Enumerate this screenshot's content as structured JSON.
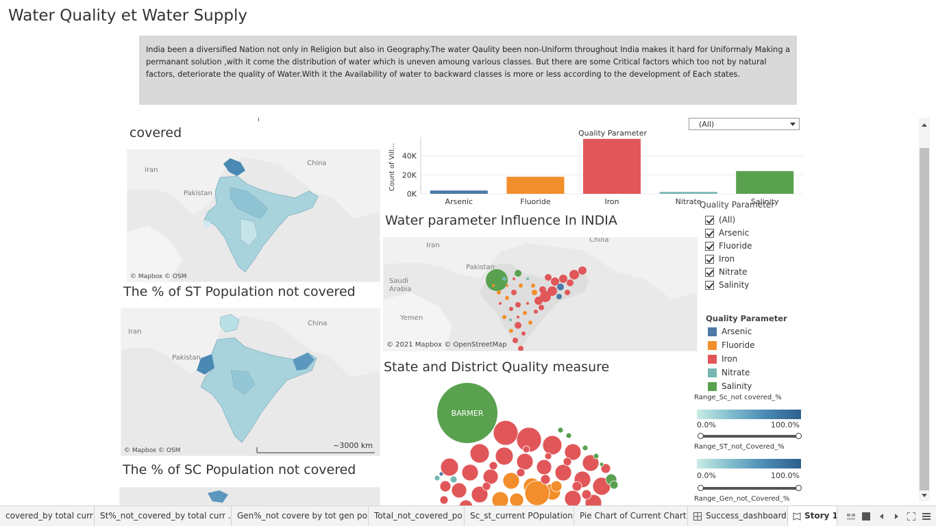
{
  "page": {
    "title": "Water Quality et Water Supply",
    "intro": "India been a diversified Nation not only in Religion but also in  Geography.The water Qaulity been non-Uniform throughout India makes it hard for Uniformaly Making a permanant solution ,with it come the distribution of water which is uneven amoung various classes. But there are some Critical factors which too not by natural factors, deteriorate the quality of Water.With it the Availability of water to backward classes is more or less according to the development of Each states."
  },
  "panels": {
    "covered_title": "covered",
    "st_title": "The % of ST Population not covered",
    "sc_title": "The % of SC Population not covered",
    "influence_title": "Water parameter Influence In INDIA",
    "state_title": "State and District Quality measure"
  },
  "maps": {
    "attribution_short": "© Mapbox © OSM",
    "attribution_long": "© 2021 Mapbox © OpenStreetMap",
    "scale": "~3000 km",
    "labels": {
      "iran": "Iran",
      "china": "China",
      "pakistan": "Pakistan",
      "saudi": "Saudi\nArabia",
      "yemen": "Yemen"
    }
  },
  "filter": {
    "selected": "(All)"
  },
  "chart_data": {
    "type": "bar",
    "title": "Quality Parameter",
    "ylabel": "Count of Vill...",
    "categories": [
      "Arsenic",
      "Fluoride",
      "Iron",
      "Nitrate",
      "Salinity"
    ],
    "values": [
      3500,
      18000,
      58000,
      2000,
      24000
    ],
    "colors": [
      "#4e79a7",
      "#f28e2b",
      "#e15759",
      "#76b7b2",
      "#59a14f"
    ],
    "yticks": [
      0,
      20000,
      40000
    ],
    "ytick_labels": [
      "0K",
      "20K",
      "40K"
    ],
    "ylim": [
      0,
      60000
    ]
  },
  "checkbox_filter": {
    "title": "Quality Parameter",
    "items": [
      "(All)",
      "Arsenic",
      "Fluoride",
      "Iron",
      "Nitrate",
      "Salinity"
    ]
  },
  "color_legend": {
    "title": "Quality Parameter",
    "items": [
      {
        "label": "Arsenic",
        "color": "#4e79a7"
      },
      {
        "label": "Fluoride",
        "color": "#f28e2b"
      },
      {
        "label": "Iron",
        "color": "#e15759"
      },
      {
        "label": "Nitrate",
        "color": "#76b7b2"
      },
      {
        "label": "Salinity",
        "color": "#59a14f"
      }
    ]
  },
  "ranges": {
    "sc": {
      "label": "Range_Sc_not covered_%",
      "min": "0.0%",
      "max": "100.0%"
    },
    "st": {
      "label": "Range_ST_not_Covered_%",
      "min": "0.0%",
      "max": "100.0%"
    },
    "gen": {
      "label": "Range_Gen_not_Covered_%"
    }
  },
  "bubble": {
    "label": "BARMER"
  },
  "tabs": [
    "covered_by total curr ...",
    "St%_not_covered_by total curr ...",
    "Gen%_not covere by tot gen pop",
    "Total_not_covered_po",
    "Sc_st_current POpulation",
    "Pie Chart of Current Chart",
    "Success_dashboard",
    "Story 1"
  ]
}
